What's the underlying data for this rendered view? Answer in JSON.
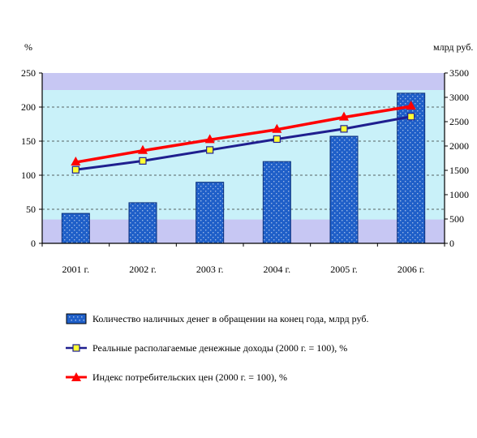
{
  "chart_data": {
    "type": "bar+line",
    "categories": [
      "2001 г.",
      "2002 г.",
      "2003 г.",
      "2004 г.",
      "2005 г.",
      "2006 г."
    ],
    "left_axis": {
      "unit": "%",
      "range": [
        0,
        250
      ],
      "ticks": [
        "0",
        "50",
        "100",
        "150",
        "200",
        "250"
      ]
    },
    "right_axis": {
      "unit": "млрд руб.",
      "range": [
        0,
        3500
      ],
      "ticks": [
        "0",
        "500",
        "1000",
        "1500",
        "2000",
        "2500",
        "3000",
        "3500"
      ]
    },
    "series": [
      {
        "name": "Количество наличных денег в обращении на конец года, млрд руб.",
        "type": "bar",
        "axis": "right",
        "values": [
          615,
          835,
          1255,
          1680,
          2200,
          3085
        ],
        "color": "#1f5fc8"
      },
      {
        "name": "Реальные располагаемые денежные доходы (2000 г. = 100), %",
        "type": "line",
        "axis": "left",
        "values": [
          108,
          121,
          137,
          153,
          168,
          186
        ],
        "color": "#1f1f8f",
        "marker": "yellow-square"
      },
      {
        "name": "Индекс потребительских цен (2000 г. = 100), %",
        "type": "line",
        "axis": "left",
        "values": [
          119,
          136,
          152,
          167,
          185,
          201
        ],
        "color": "#ff0000",
        "marker": "red-triangle"
      }
    ],
    "grid": "horizontal-dashed",
    "background_bands": [
      "#c7c7f3",
      "#c9f1f9"
    ],
    "legend_position": "bottom"
  }
}
